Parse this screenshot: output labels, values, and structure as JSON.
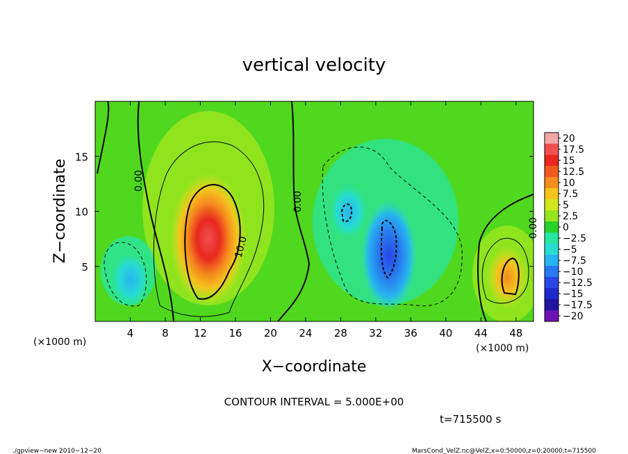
{
  "chart_data": {
    "type": "heatmap",
    "title": "vertical velocity",
    "xlabel": "X−coordinate",
    "ylabel": "Z−coordinate",
    "x_unit_left": "(×1000 m)",
    "x_unit_right": "(×1000 m)",
    "xlim": [
      0,
      50
    ],
    "ylim": [
      0,
      20
    ],
    "x_ticks": [
      4,
      8,
      12,
      16,
      20,
      24,
      28,
      32,
      36,
      40,
      44,
      48
    ],
    "y_ticks": [
      5,
      10,
      15
    ],
    "colorbar_labels": [
      "20",
      "17.5",
      "15",
      "12.5",
      "10",
      "7.5",
      "5",
      "2.5",
      "0",
      "−2.5",
      "−5",
      "−7.5",
      "−10",
      "−12.5",
      "−15",
      "−17.5",
      "−20"
    ],
    "colorbar_values": [
      20,
      17.5,
      15,
      12.5,
      10,
      7.5,
      5,
      2.5,
      0,
      -2.5,
      -5,
      -7.5,
      -10,
      -12.5,
      -15,
      -17.5,
      -20
    ],
    "colorbar_colors": [
      "#f4a6a6",
      "#f05050",
      "#e8281e",
      "#f05a1e",
      "#f58c1e",
      "#f5c41e",
      "#d2e61e",
      "#96e61e",
      "#28d22a",
      "#28e6a0",
      "#28dcd2",
      "#28b4f0",
      "#2878f0",
      "#2846e6",
      "#1e28c8",
      "#1e14a0",
      "#6e14b4"
    ],
    "contour_labels": [
      "0.00",
      "0.00",
      "10.0",
      "0.00"
    ],
    "contour_interval": "CONTOUR INTERVAL = 5.000E+00",
    "time": "t=715500 s",
    "features": [
      {
        "x": 12.9,
        "z": 7.5,
        "value": 15
      },
      {
        "x": 47.0,
        "z": 4.0,
        "value": 8.5
      },
      {
        "x": 33.5,
        "z": 6.0,
        "value": -11
      },
      {
        "x": 28.9,
        "z": 10.0,
        "value": -8
      },
      {
        "x": 4.0,
        "z": 3.8,
        "value": -6
      }
    ],
    "footer_left": "./gpview−new   2010−12−20",
    "footer_right": "MarsCond_VelZ.nc@VelZ,x=0:50000,z=0:20000,t=715500"
  }
}
